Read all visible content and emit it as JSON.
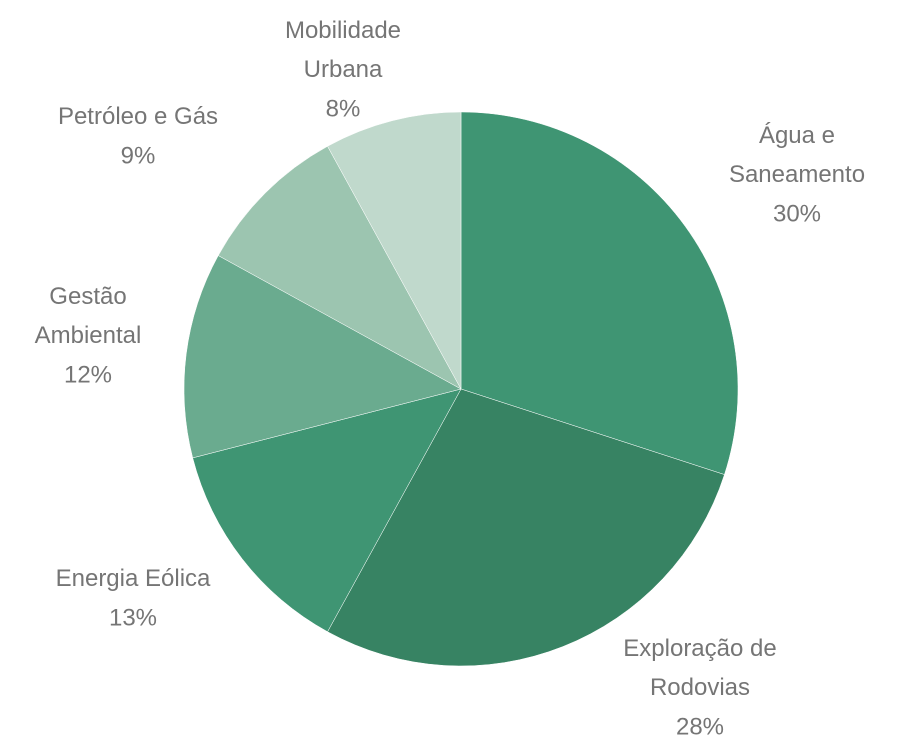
{
  "chart_data": {
    "type": "pie",
    "categories": [
      "Água e Saneamento",
      "Exploração de Rodovias",
      "Energia Eólica",
      "Gestão Ambiental",
      "Petróleo e Gás",
      "Mobilidade Urbana"
    ],
    "values": [
      30,
      28,
      13,
      12,
      9,
      8
    ],
    "value_labels": [
      "30%",
      "28%",
      "13%",
      "12%",
      "9%",
      "8%"
    ],
    "colors": [
      "#3f9573",
      "#378363",
      "#3f9573",
      "#6aab8f",
      "#9cc5b0",
      "#c0d9cc"
    ]
  }
}
